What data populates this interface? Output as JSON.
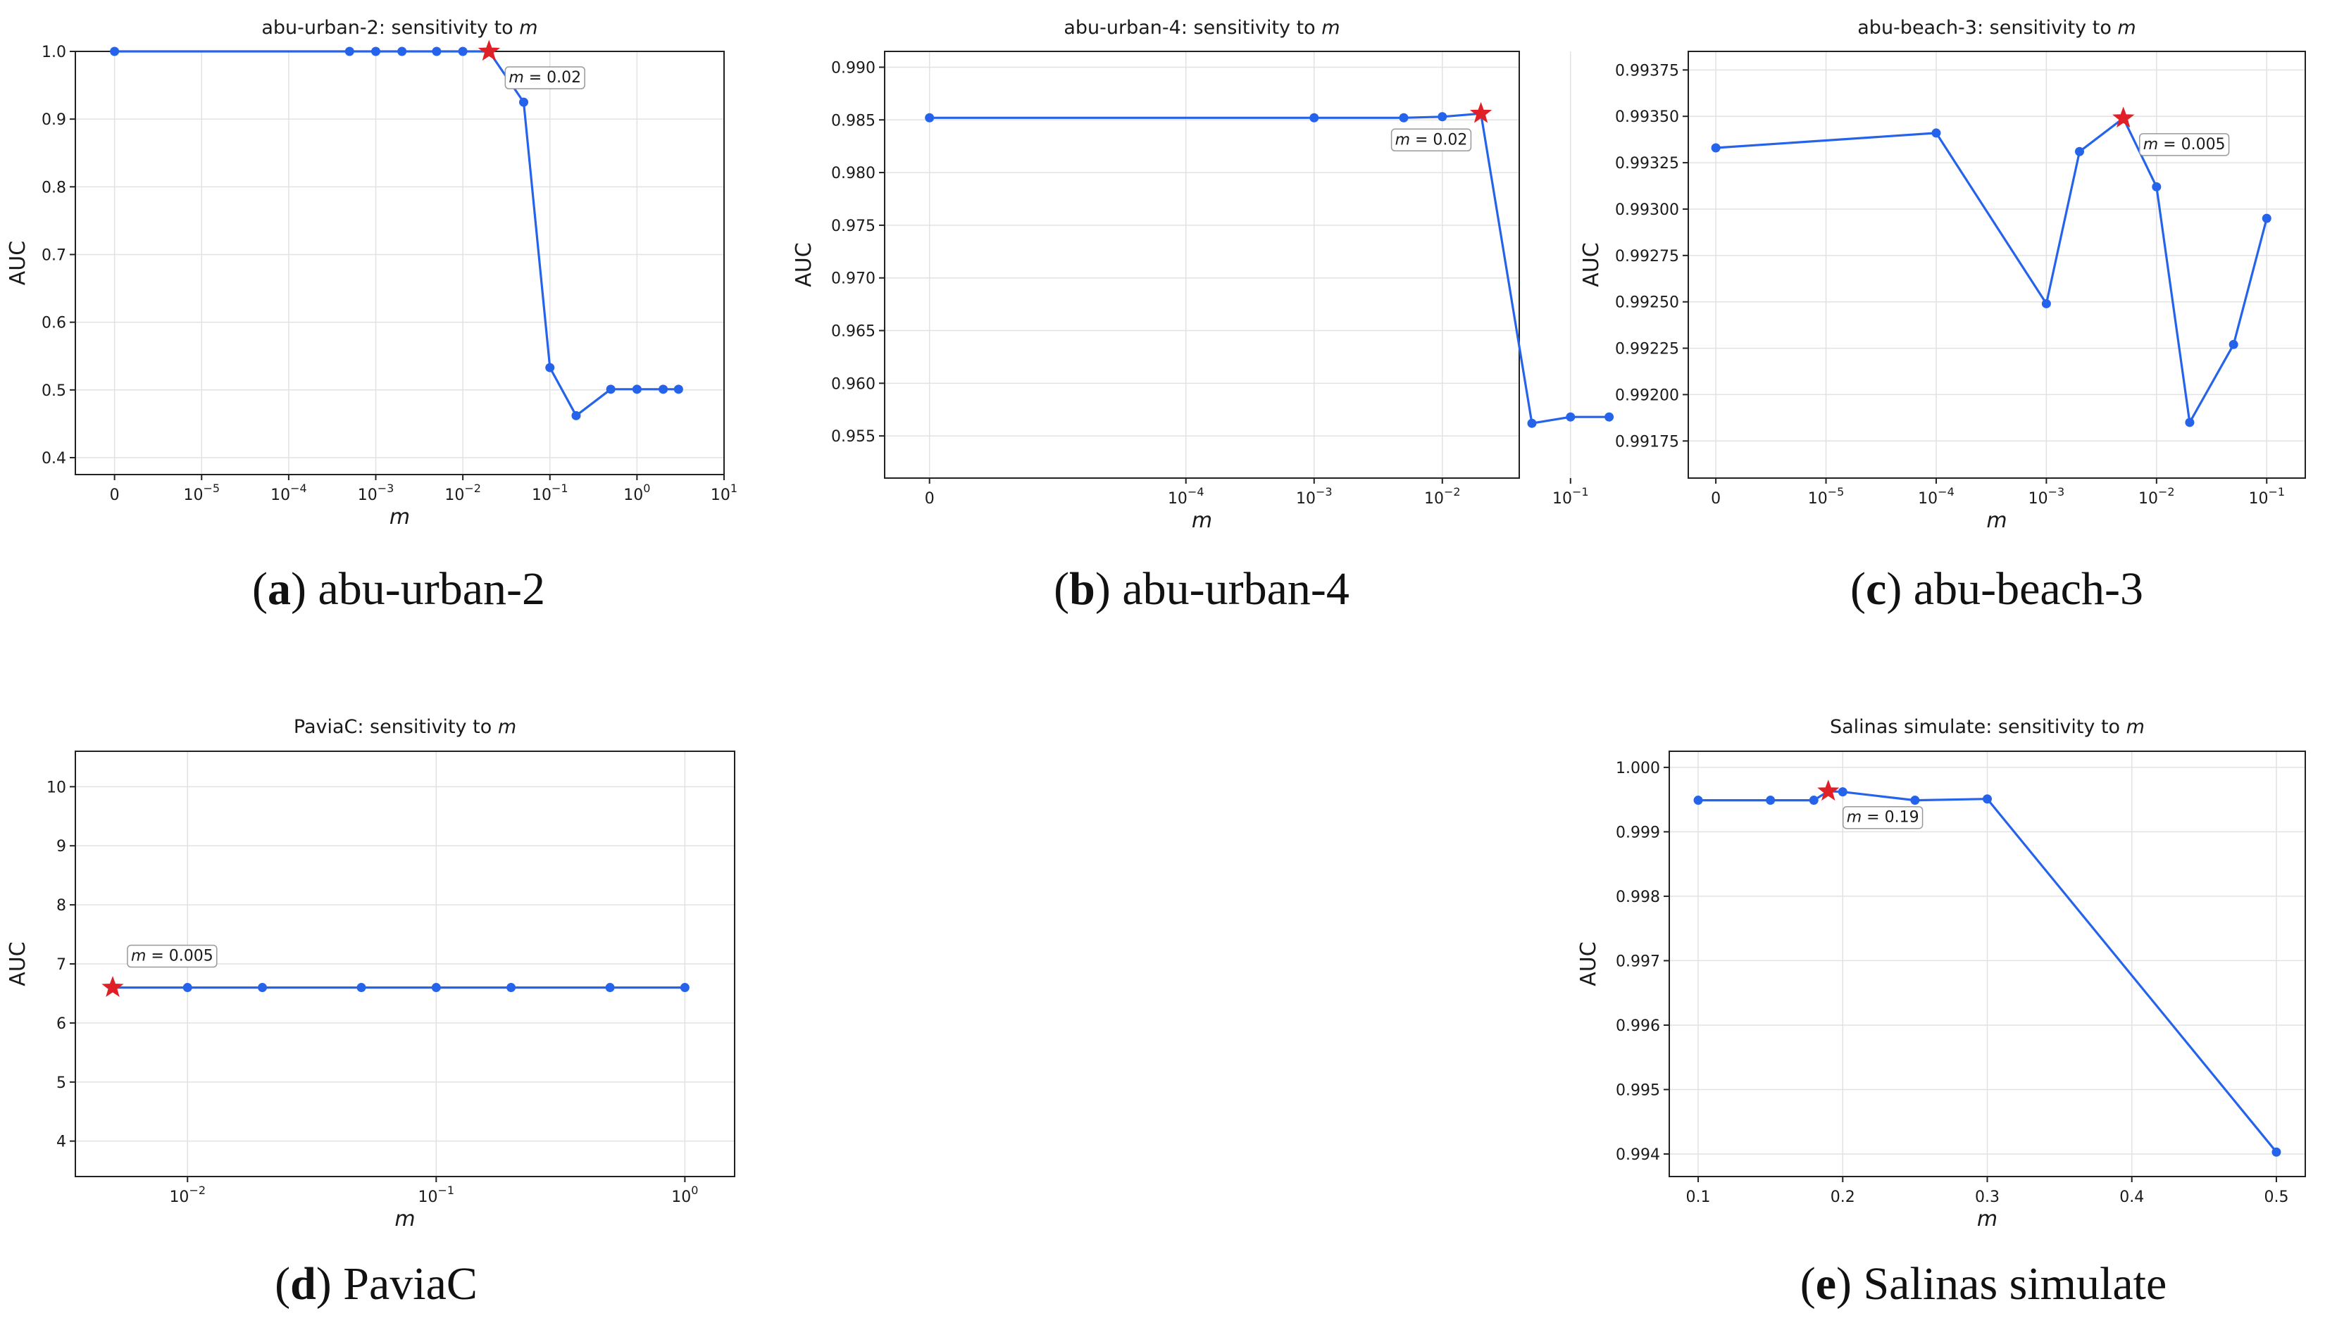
{
  "colors": {
    "line": "#2563eb",
    "star": "#e02027",
    "grid": "#e2e2e2",
    "axis": "#222222",
    "annotation_border": "#999999"
  },
  "chart_data": [
    {
      "type": "line",
      "title": "abu-urban-2: sensitivity to m",
      "title_prefix": "abu-urban-2: sensitivity to ",
      "xlabel": "m",
      "ylabel": "AUC",
      "caption_letter": "a",
      "caption_text": "abu-urban-2",
      "x_scale": "symlog",
      "x_ticks": [
        0,
        1e-05,
        0.0001,
        0.001,
        0.01,
        0.1,
        1,
        10
      ],
      "x_tick_labels": [
        {
          "base": "0",
          "exp": ""
        },
        {
          "base": "10",
          "exp": "−5"
        },
        {
          "base": "10",
          "exp": "−4"
        },
        {
          "base": "10",
          "exp": "−3"
        },
        {
          "base": "10",
          "exp": "−2"
        },
        {
          "base": "10",
          "exp": "−1"
        },
        {
          "base": "10",
          "exp": "0"
        },
        {
          "base": "10",
          "exp": "1"
        }
      ],
      "y_ticks": [
        0.4,
        0.5,
        0.6,
        0.7,
        0.8,
        0.9,
        1.0
      ],
      "y_tick_labels": [
        "0.4",
        "0.5",
        "0.6",
        "0.7",
        "0.8",
        "0.9",
        "1.0"
      ],
      "ylim": [
        0.375,
        1.0
      ],
      "grid": true,
      "series": [
        {
          "x": [
            0,
            0.0005,
            0.001,
            0.002,
            0.005,
            0.01,
            0.02,
            0.05,
            0.1,
            0.2,
            0.5,
            1,
            2,
            3
          ],
          "y": [
            1.0,
            1.0,
            1.0,
            1.0,
            1.0,
            1.0,
            1.0,
            0.925,
            0.533,
            0.462,
            0.501,
            0.501,
            0.501,
            0.501
          ]
        }
      ],
      "best": {
        "x": 0.02,
        "y": 1.0
      },
      "annotation": {
        "prefix": "m",
        "value_text": " = 0.02"
      }
    },
    {
      "type": "line",
      "title": "abu-urban-4: sensitivity to m",
      "title_prefix": "abu-urban-4: sensitivity to ",
      "xlabel": "m",
      "ylabel": "AUC",
      "caption_letter": "b",
      "caption_text": "abu-urban-4",
      "x_scale": "symlog",
      "x_ticks": [
        0,
        0.0001,
        0.001,
        0.01,
        0.1
      ],
      "x_tick_labels": [
        {
          "base": "0",
          "exp": ""
        },
        {
          "base": "10",
          "exp": "−4"
        },
        {
          "base": "10",
          "exp": "−3"
        },
        {
          "base": "10",
          "exp": "−2"
        },
        {
          "base": "10",
          "exp": "−1"
        }
      ],
      "y_ticks": [
        0.955,
        0.96,
        0.965,
        0.97,
        0.975,
        0.98,
        0.985,
        0.99
      ],
      "y_tick_labels": [
        "0.955",
        "0.960",
        "0.965",
        "0.970",
        "0.975",
        "0.980",
        "0.985",
        "0.990"
      ],
      "ylim": [
        0.951,
        0.9915
      ],
      "grid": true,
      "series": [
        {
          "x": [
            0,
            0.001,
            0.005,
            0.01,
            0.02,
            0.05,
            0.1,
            0.2
          ],
          "y": [
            0.9852,
            0.9852,
            0.9852,
            0.9853,
            0.9856,
            0.9562,
            0.9568,
            0.9568
          ]
        }
      ],
      "best": {
        "x": 0.02,
        "y": 0.9856
      },
      "annotation": {
        "prefix": "m",
        "value_text": " = 0.02"
      }
    },
    {
      "type": "line",
      "title": "abu-beach-3: sensitivity to m",
      "title_prefix": "abu-beach-3: sensitivity to ",
      "xlabel": "m",
      "ylabel": "AUC",
      "caption_letter": "c",
      "caption_text": "abu-beach-3",
      "x_scale": "symlog",
      "x_ticks": [
        0,
        1e-05,
        0.0001,
        0.001,
        0.01,
        0.1
      ],
      "x_tick_labels": [
        {
          "base": "0",
          "exp": ""
        },
        {
          "base": "10",
          "exp": "−5"
        },
        {
          "base": "10",
          "exp": "−4"
        },
        {
          "base": "10",
          "exp": "−3"
        },
        {
          "base": "10",
          "exp": "−2"
        },
        {
          "base": "10",
          "exp": "−1"
        }
      ],
      "y_ticks": [
        0.99175,
        0.992,
        0.99225,
        0.9925,
        0.99275,
        0.993,
        0.99325,
        0.9935,
        0.99375
      ],
      "y_tick_labels": [
        "0.99175",
        "0.99200",
        "0.99225",
        "0.99250",
        "0.99275",
        "0.99300",
        "0.99325",
        "0.99350",
        "0.99375"
      ],
      "ylim": [
        0.99155,
        0.99385
      ],
      "grid": true,
      "series": [
        {
          "x": [
            0,
            0.0001,
            0.001,
            0.002,
            0.005,
            0.01,
            0.02,
            0.05,
            0.1
          ],
          "y": [
            0.99333,
            0.99341,
            0.99249,
            0.99331,
            0.99349,
            0.99312,
            0.99185,
            0.99227,
            0.99295
          ]
        }
      ],
      "best": {
        "x": 0.005,
        "y": 0.99349
      },
      "annotation": {
        "prefix": "m",
        "value_text": " = 0.005"
      }
    },
    {
      "type": "line",
      "title": "PaviaC: sensitivity to m",
      "title_prefix": "PaviaC: sensitivity to ",
      "xlabel": "m",
      "ylabel": "AUC",
      "caption_letter": "d",
      "caption_text": "PaviaC",
      "x_scale": "log",
      "x_ticks": [
        0.01,
        0.1,
        1
      ],
      "x_tick_labels": [
        {
          "base": "10",
          "exp": "−2"
        },
        {
          "base": "10",
          "exp": "−1"
        },
        {
          "base": "10",
          "exp": "0"
        }
      ],
      "y_ticks": [
        4,
        5,
        6,
        7,
        8,
        9,
        10
      ],
      "y_tick_labels": [
        "4",
        "5",
        "6",
        "7",
        "8",
        "9",
        "10"
      ],
      "ylim": [
        3.4,
        10.6
      ],
      "grid": true,
      "series": [
        {
          "x": [
            0.005,
            0.01,
            0.02,
            0.05,
            0.1,
            0.2,
            0.5,
            1
          ],
          "y": [
            6.6,
            6.6,
            6.6,
            6.6,
            6.6,
            6.6,
            6.6,
            6.6
          ]
        }
      ],
      "best": {
        "x": 0.005,
        "y": 6.6
      },
      "annotation": {
        "prefix": "m",
        "value_text": " = 0.005"
      }
    },
    {
      "type": "line",
      "title": "Salinas simulate: sensitivity to m",
      "title_prefix": "Salinas simulate: sensitivity to ",
      "xlabel": "m",
      "ylabel": "AUC",
      "caption_letter": "e",
      "caption_text": "Salinas simulate",
      "x_scale": "linear",
      "x_ticks": [
        0.1,
        0.2,
        0.3,
        0.4,
        0.5
      ],
      "x_tick_labels": [
        {
          "base": "0.1",
          "exp": ""
        },
        {
          "base": "0.2",
          "exp": ""
        },
        {
          "base": "0.3",
          "exp": ""
        },
        {
          "base": "0.4",
          "exp": ""
        },
        {
          "base": "0.5",
          "exp": ""
        }
      ],
      "y_ticks": [
        0.994,
        0.995,
        0.996,
        0.997,
        0.998,
        0.999,
        1.0
      ],
      "y_tick_labels": [
        "0.994",
        "0.995",
        "0.996",
        "0.997",
        "0.998",
        "0.999",
        "1.000"
      ],
      "ylim": [
        0.99365,
        1.00025
      ],
      "grid": true,
      "series": [
        {
          "x": [
            0.1,
            0.15,
            0.18,
            0.19,
            0.2,
            0.25,
            0.3,
            0.5
          ],
          "y": [
            0.99949,
            0.99949,
            0.99949,
            0.99963,
            0.99962,
            0.99949,
            0.99951,
            0.99403
          ]
        }
      ],
      "best": {
        "x": 0.19,
        "y": 0.99963
      },
      "annotation": {
        "prefix": "m",
        "value_text": " = 0.19"
      }
    }
  ]
}
